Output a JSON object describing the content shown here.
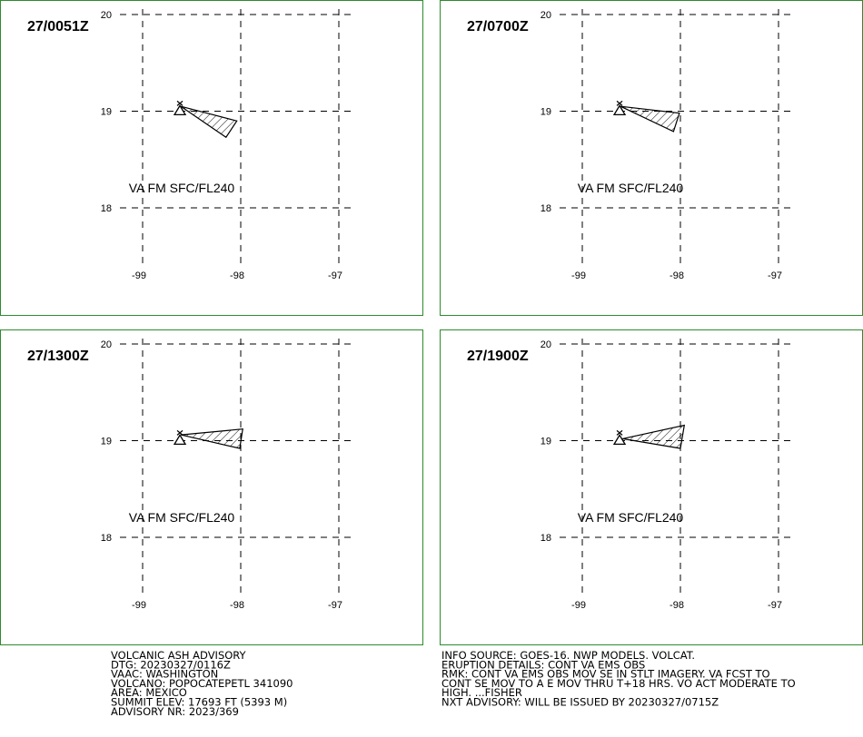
{
  "panels": [
    {
      "time": "27/0051Z",
      "label": "VA FM SFC/FL240",
      "ash_polygon": [
        [
          -98.61,
          19.05
        ],
        [
          -98.04,
          18.9
        ],
        [
          -98.15,
          18.73
        ]
      ]
    },
    {
      "time": "27/0700Z",
      "label": "VA FM SFC/FL240",
      "ash_polygon": [
        [
          -98.61,
          19.05
        ],
        [
          -98.01,
          18.98
        ],
        [
          -98.07,
          18.79
        ]
      ]
    },
    {
      "time": "27/1300Z",
      "label": "VA FM SFC/FL240",
      "ash_polygon": [
        [
          -98.61,
          19.06
        ],
        [
          -97.98,
          19.12
        ],
        [
          -98.01,
          18.92
        ]
      ]
    },
    {
      "time": "27/1900Z",
      "label": "VA FM SFC/FL240",
      "ash_polygon": [
        [
          -98.59,
          19.02
        ],
        [
          -97.96,
          19.16
        ],
        [
          -98.0,
          18.92
        ]
      ]
    }
  ],
  "lat_ticks": [
    20,
    19,
    18
  ],
  "lon_ticks": [
    -99,
    -98,
    -97
  ],
  "volcano": {
    "lon": -98.62,
    "lat": 19.02
  },
  "advisory_left": [
    "VOLCANIC ASH ADVISORY",
    "DTG: 20230327/0116Z",
    "VAAC: WASHINGTON",
    "VOLCANO: POPOCATEPETL 341090",
    "AREA: MEXICO",
    "SUMMIT ELEV: 17693 FT (5393 M)",
    "ADVISORY NR: 2023/369"
  ],
  "advisory_right": [
    "INFO SOURCE: GOES-16. NWP MODELS. VOLCAT.",
    "ERUPTION DETAILS: CONT VA EMS OBS",
    "RMK: CONT VA EMS OBS MOV SE IN STLT IMAGERY. VA FCST TO",
    "CONT SE MOV TO A E MOV THRU T+18 HRS. VO ACT MODERATE TO",
    "HIGH. ...FISHER",
    "NXT ADVISORY: WILL BE ISSUED BY 20230327/0715Z"
  ]
}
